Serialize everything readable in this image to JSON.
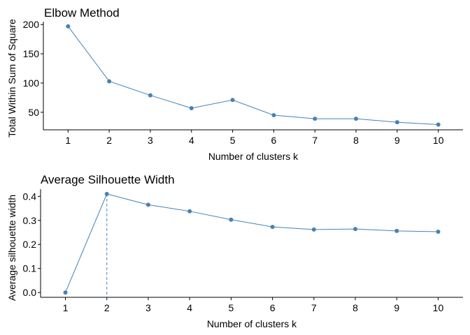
{
  "colors": {
    "series": "#4682b4",
    "axis": "#000000"
  },
  "chart_data": [
    {
      "type": "line",
      "title": "Elbow Method",
      "xlabel": "Number of clusters k",
      "ylabel": "Total Within Sum of Square",
      "x": [
        1,
        2,
        3,
        4,
        5,
        6,
        7,
        8,
        9,
        10
      ],
      "x_tick_labels": [
        "1",
        "2",
        "3",
        "4",
        "5",
        "6",
        "7",
        "8",
        "9",
        "10"
      ],
      "values": [
        197,
        103,
        79,
        57,
        71,
        45,
        39,
        39,
        33,
        29
      ],
      "ylim": [
        20,
        205
      ],
      "xlim": [
        0.4,
        10.6
      ],
      "y_ticks": [
        50,
        100,
        150,
        200
      ],
      "y_tick_labels": [
        "50",
        "100",
        "150",
        "200"
      ],
      "grid": false,
      "legend": "none"
    },
    {
      "type": "line",
      "title": "Average Silhouette Width",
      "xlabel": "Number of clusters k",
      "ylabel": "Average silhouette width",
      "x": [
        1,
        2,
        3,
        4,
        5,
        6,
        7,
        8,
        9,
        10
      ],
      "x_tick_labels": [
        "1",
        "2",
        "3",
        "4",
        "5",
        "6",
        "7",
        "8",
        "9",
        "10"
      ],
      "values": [
        0.0,
        0.41,
        0.365,
        0.338,
        0.303,
        0.273,
        0.262,
        0.264,
        0.256,
        0.253
      ],
      "ylim": [
        -0.02,
        0.43
      ],
      "xlim": [
        0.4,
        10.6
      ],
      "y_ticks": [
        0.0,
        0.1,
        0.2,
        0.3,
        0.4
      ],
      "y_tick_labels": [
        "0.0",
        "0.1",
        "0.2",
        "0.3",
        "0.4"
      ],
      "optimal_k": 2,
      "grid": false,
      "legend": "none"
    }
  ]
}
